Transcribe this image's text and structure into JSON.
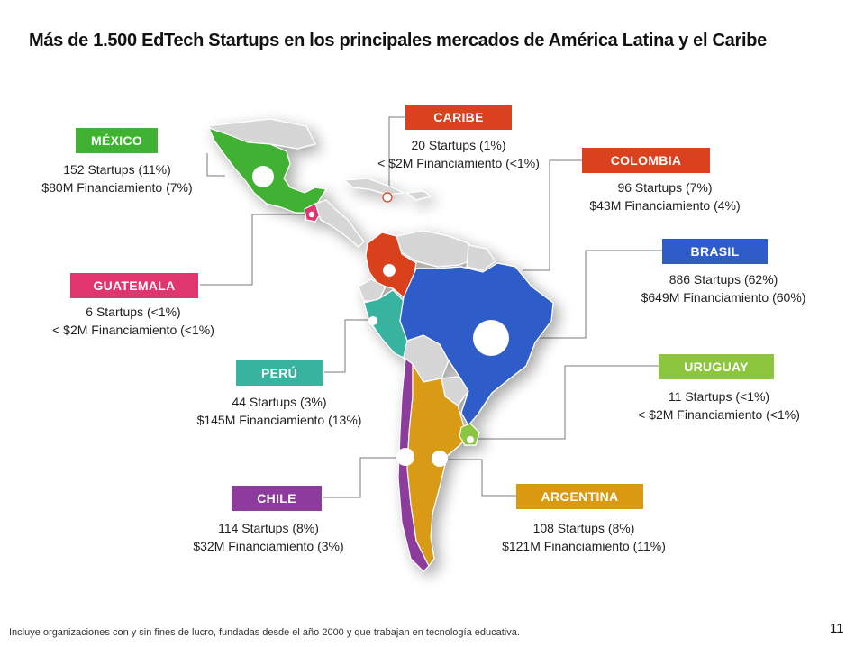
{
  "title": "Más de 1.500 EdTech Startups en los principales mercados de América Latina y el Caribe",
  "countries": {
    "mexico": {
      "name": "MÉXICO",
      "startups": "152 Startups (11%)",
      "funding": "$80M Financiamiento (7%)",
      "color": "#3fb133"
    },
    "caribe": {
      "name": "CARIBE",
      "startups": "20 Startups (1%)",
      "funding": "< $2M Financiamiento (<1%)",
      "color": "#d9411f"
    },
    "colombia": {
      "name": "COLOMBIA",
      "startups": "96 Startups (7%)",
      "funding": "$43M Financiamiento (4%)",
      "color": "#d9411f"
    },
    "guatemala": {
      "name": "GUATEMALA",
      "startups": "6 Startups (<1%)",
      "funding": "< $2M Financiamiento (<1%)",
      "color": "#e0356f"
    },
    "brasil": {
      "name": "BRASIL",
      "startups": "886 Startups (62%)",
      "funding": "$649M Financiamiento (60%)",
      "color": "#2e5cc8"
    },
    "peru": {
      "name": "PERÚ",
      "startups": "44 Startups (3%)",
      "funding": "$145M Financiamiento (13%)",
      "color": "#37b3a0"
    },
    "uruguay": {
      "name": "URUGUAY",
      "startups": "11 Startups (<1%)",
      "funding": "< $2M Financiamiento (<1%)",
      "color": "#8cc63f"
    },
    "chile": {
      "name": "CHILE",
      "startups": "114 Startups (8%)",
      "funding": "$32M Financiamiento (3%)",
      "color": "#8e3b9e"
    },
    "argentina": {
      "name": "ARGENTINA",
      "startups": "108 Startups (8%)",
      "funding": "$121M Financiamiento (11%)",
      "color": "#d99a12"
    }
  },
  "footer": "Incluye organizaciones con y sin fines de lucro, fundadas desde el año 2000 y que trabajan en tecnología educativa.",
  "page_number": "11"
}
